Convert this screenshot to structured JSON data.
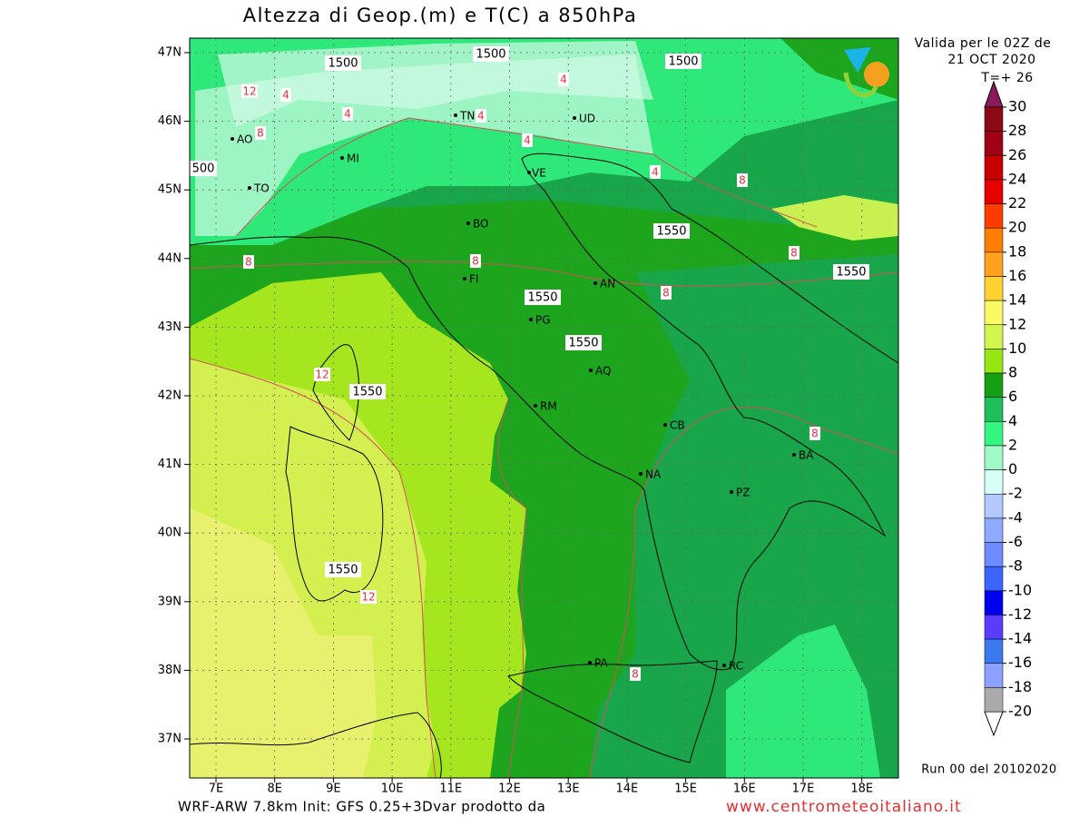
{
  "header": {
    "title": "Altezza di Geop.(m) e T(C) a 850hPa",
    "valid_line1": "Valida per le 02Z de",
    "valid_line2": "21 OCT 2020",
    "valid_line3": "T=+ 26"
  },
  "map": {
    "lat_labels": [
      "47N",
      "46N",
      "45N",
      "44N",
      "43N",
      "42N",
      "41N",
      "40N",
      "39N",
      "38N",
      "37N"
    ],
    "lon_labels": [
      "7E",
      "8E",
      "9E",
      "10E",
      "11E",
      "12E",
      "13E",
      "14E",
      "15E",
      "16E",
      "17E",
      "18E"
    ],
    "cities": [
      "AO",
      "TO",
      "MI",
      "TN",
      "UD",
      "VE",
      "BO",
      "FI",
      "AN",
      "PG",
      "AQ",
      "RM",
      "CB",
      "NA",
      "BA",
      "PZ",
      "PA",
      "RC"
    ],
    "geopotential_labels": [
      "1500",
      "1500",
      "1500",
      "1550",
      "1550",
      "1550",
      "1550",
      "1550",
      "1550",
      "500"
    ],
    "temperature_labels": [
      "12",
      "4",
      "4",
      "8",
      "4",
      "4",
      "4",
      "4",
      "8",
      "8",
      "8",
      "8",
      "8",
      "12",
      "8",
      "12",
      "8"
    ]
  },
  "colorbar": {
    "levels": [
      30,
      28,
      26,
      24,
      22,
      20,
      18,
      16,
      14,
      12,
      10,
      8,
      6,
      4,
      2,
      0,
      -2,
      -4,
      -6,
      -8,
      -10,
      -12,
      -14,
      -16,
      -18,
      -20
    ],
    "colors": [
      "#8b0a14",
      "#a00014",
      "#c80000",
      "#e60000",
      "#ff3c00",
      "#ff7d00",
      "#ffa01e",
      "#ffd232",
      "#fafa64",
      "#d2f550",
      "#96e614",
      "#14a014",
      "#1ebe5a",
      "#32f582",
      "#a0fac8",
      "#d7fff5",
      "#b4c8ff",
      "#8caaff",
      "#6e8cff",
      "#3c64ff",
      "#0000f0",
      "#5a3cff",
      "#3c78f0",
      "#8ca0ff",
      "#aaaaaa"
    ]
  },
  "footer": {
    "run": "Run 00 del 20102020",
    "model": "WRF-ARW 7.8km Init: GFS 0.25+3Dvar prodotto da",
    "website": "www.centrometeoitaliano.it"
  }
}
